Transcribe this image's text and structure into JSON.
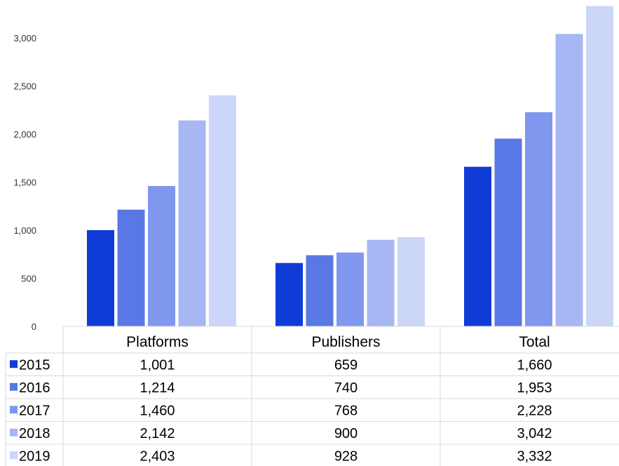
{
  "chart_data": {
    "type": "bar",
    "categories": [
      "Platforms",
      "Publishers",
      "Total"
    ],
    "series": [
      {
        "name": "2015",
        "values": [
          1001,
          659,
          1660
        ],
        "color": "#0f3bd6"
      },
      {
        "name": "2016",
        "values": [
          1214,
          740,
          1953
        ],
        "color": "#5978e6"
      },
      {
        "name": "2017",
        "values": [
          1460,
          768,
          2228
        ],
        "color": "#7f97ef"
      },
      {
        "name": "2018",
        "values": [
          2142,
          900,
          3042
        ],
        "color": "#a6b7f4"
      },
      {
        "name": "2019",
        "values": [
          2403,
          928,
          3332
        ],
        "color": "#cbd6f9"
      }
    ],
    "table_values": [
      [
        "1,001",
        "659",
        "1,660"
      ],
      [
        "1,214",
        "740",
        "1,953"
      ],
      [
        "1,460",
        "768",
        "2,228"
      ],
      [
        "2,142",
        "900",
        "3,042"
      ],
      [
        "2,403",
        "928",
        "3,332"
      ]
    ],
    "yticks": [
      "0",
      "500",
      "1,000",
      "1,500",
      "2,000",
      "2,500",
      "3,000"
    ],
    "ylim": [
      0,
      3300
    ],
    "data_table": true,
    "grid": false
  }
}
